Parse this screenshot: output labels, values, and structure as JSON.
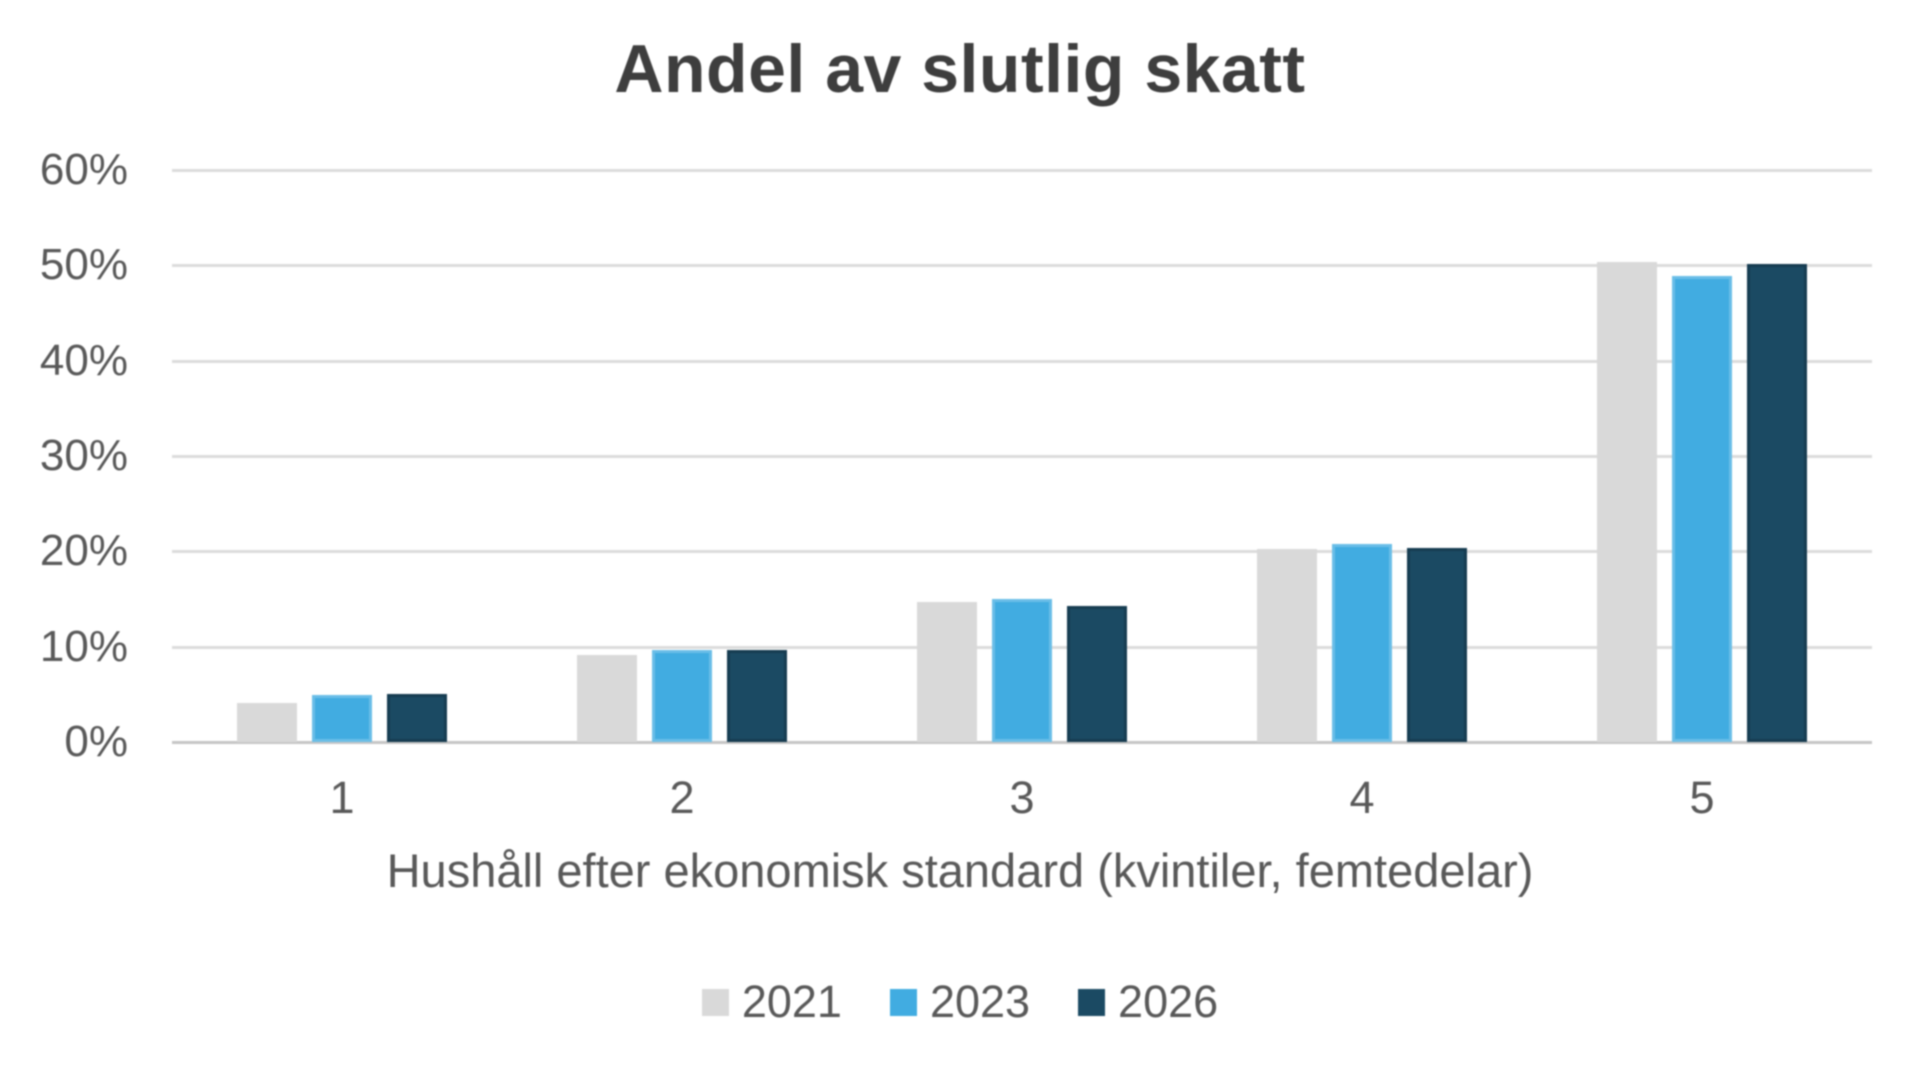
{
  "page": {
    "background": "#ffffff"
  },
  "colors": {
    "title_text": "#3e3e3e",
    "axis_text": "#595959",
    "gridline": "#dcdcdc",
    "axis_line": "#c6c6c6"
  },
  "chart_data": {
    "type": "bar",
    "title": "Andel av slutlig skatt",
    "xlabel": "Hushåll efter ekonomisk standard (kvintiler, femtedelar)",
    "ylabel": "",
    "categories": [
      "1",
      "2",
      "3",
      "4",
      "5"
    ],
    "series": [
      {
        "name": "2021",
        "color": "#d9d9d9",
        "values": [
          4.1,
          9.1,
          14.7,
          20.2,
          50.3
        ]
      },
      {
        "name": "2023",
        "color": "#41ace1",
        "values": [
          4.9,
          9.6,
          15.0,
          20.8,
          48.9
        ]
      },
      {
        "name": "2026",
        "color": "#1b4a63",
        "values": [
          5.0,
          9.6,
          14.3,
          20.4,
          50.1
        ]
      }
    ],
    "ylim": [
      0,
      60
    ],
    "ytick_step": 10,
    "yticks": [
      "0%",
      "10%",
      "20%",
      "30%",
      "40%",
      "50%",
      "60%"
    ],
    "grid": true,
    "legend_position": "bottom",
    "legend_labels": [
      "2021",
      "2023",
      "2026"
    ]
  }
}
